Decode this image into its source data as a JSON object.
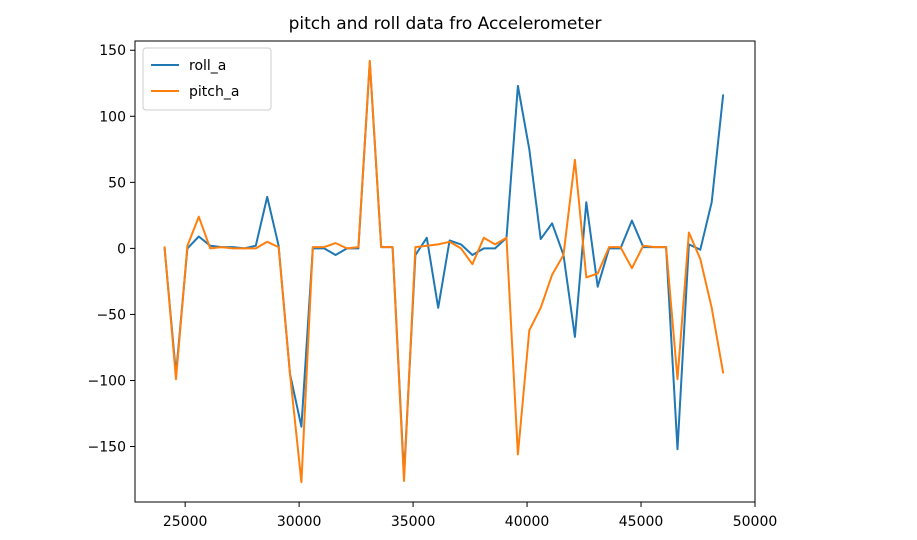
{
  "chart_data": {
    "type": "line",
    "title": "pitch and roll data fro Accelerometer",
    "xlabel": "",
    "ylabel": "",
    "xlim": [
      22800,
      50000
    ],
    "ylim": [
      -192,
      157
    ],
    "xticks": [
      25000,
      30000,
      35000,
      40000,
      45000,
      50000
    ],
    "xtick_labels": [
      "25000",
      "30000",
      "35000",
      "40000",
      "45000",
      "50000"
    ],
    "yticks": [
      150,
      100,
      50,
      0,
      -50,
      -100,
      -150
    ],
    "ytick_labels": [
      "150",
      "100",
      "50",
      "0",
      "−50",
      "−100",
      "−150"
    ],
    "grid": false,
    "legend_position": "top-left",
    "series": [
      {
        "name": "roll_a",
        "color": "#1f77b4",
        "x": [
          24100,
          24600,
          25100,
          25600,
          26100,
          26600,
          27100,
          27600,
          28100,
          28600,
          29100,
          29600,
          30100,
          30600,
          31100,
          31600,
          32100,
          32600,
          33100,
          33600,
          34100,
          34600,
          35100,
          35600,
          36100,
          36600,
          37100,
          37600,
          38100,
          38600,
          39100,
          39600,
          40100,
          40600,
          41100,
          41600,
          42100,
          42600,
          43100,
          43600,
          44100,
          44600,
          45100,
          45600,
          46100,
          46600,
          47100,
          47600,
          48100,
          48600
        ],
        "y": [
          0,
          -95,
          0,
          9,
          2,
          1,
          1,
          0,
          2,
          39,
          2,
          -95,
          -135,
          0,
          0,
          -5,
          0,
          0,
          141,
          1,
          1,
          -172,
          -5,
          8,
          -45,
          6,
          3,
          -5,
          0,
          0,
          8,
          123,
          75,
          7,
          19,
          -5,
          -67,
          35,
          -29,
          0,
          0,
          21,
          1,
          1,
          1,
          -152,
          3,
          -1,
          35,
          116
        ]
      },
      {
        "name": "pitch_a",
        "color": "#ff7f0e",
        "x": [
          24100,
          24600,
          25100,
          25600,
          26100,
          26600,
          27100,
          27600,
          28100,
          28600,
          29100,
          29600,
          30100,
          30600,
          31100,
          31600,
          32100,
          32600,
          33100,
          33600,
          34100,
          34600,
          35100,
          35600,
          36100,
          36600,
          37100,
          37600,
          38100,
          38600,
          39100,
          39600,
          40100,
          40600,
          41100,
          41600,
          42100,
          42600,
          43100,
          43600,
          44100,
          44600,
          45100,
          45600,
          46100,
          46600,
          47100,
          47600,
          48100,
          48600
        ],
        "y": [
          1,
          -99,
          2,
          24,
          0,
          1,
          0,
          0,
          0,
          5,
          1,
          -95,
          -177,
          1,
          1,
          4,
          0,
          1,
          142,
          1,
          1,
          -176,
          1,
          2,
          3,
          5,
          0,
          -12,
          8,
          3,
          8,
          -156,
          -62,
          -45,
          -20,
          -5,
          67,
          -22,
          -19,
          1,
          1,
          -15,
          2,
          1,
          1,
          -99,
          12,
          -8,
          -45,
          -94
        ]
      }
    ]
  }
}
